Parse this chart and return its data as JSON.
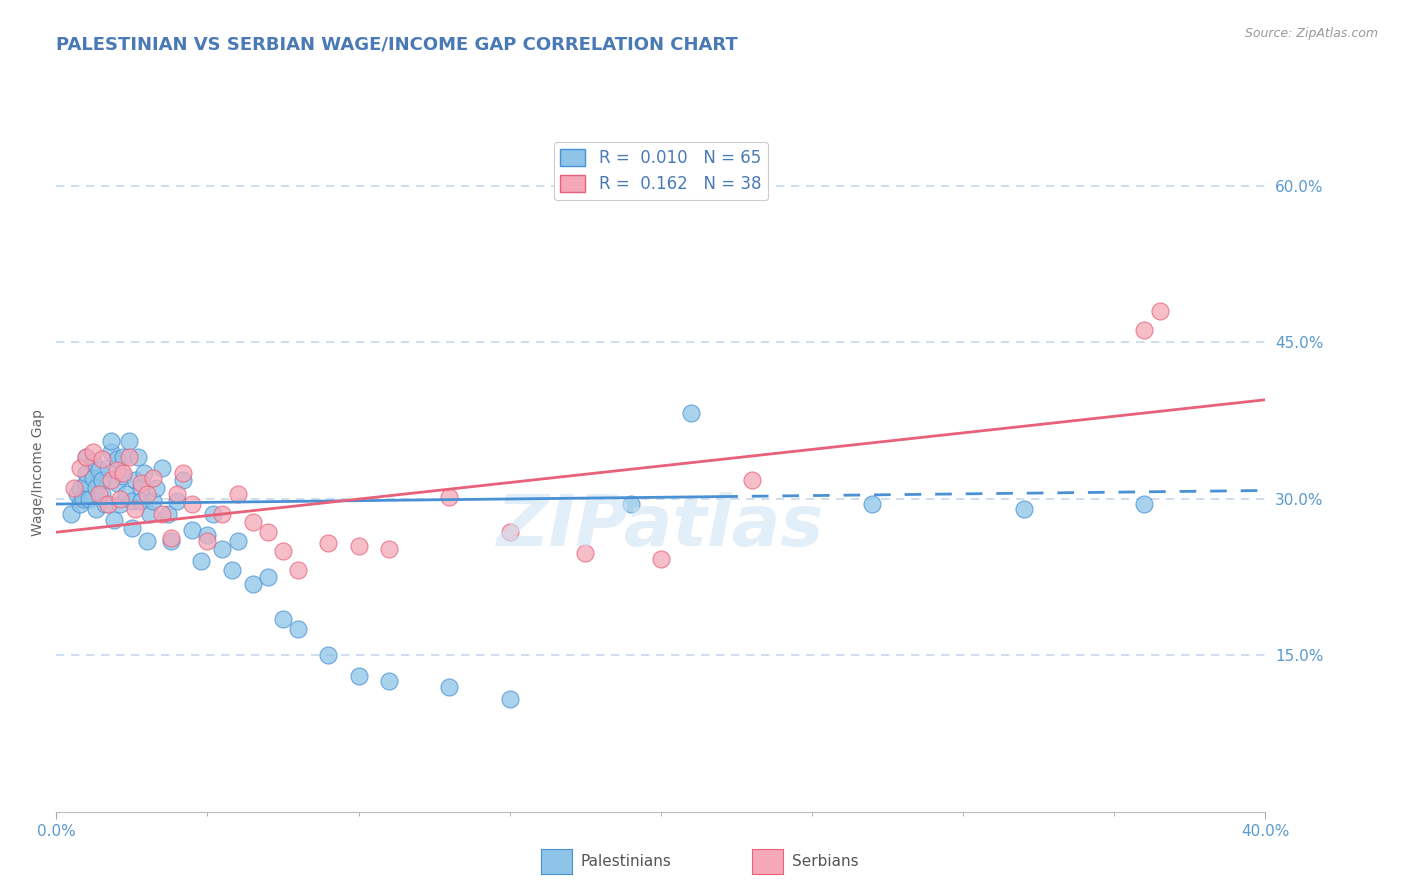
{
  "title": "PALESTINIAN VS SERBIAN WAGE/INCOME GAP CORRELATION CHART",
  "source": "Source: ZipAtlas.com",
  "xmin": 0.0,
  "xmax": 0.4,
  "ymin": 0.0,
  "ymax": 0.65,
  "palestinian_color": "#8dc4e8",
  "serbian_color": "#f4a8b8",
  "palestinian_line_color": "#4a90d4",
  "serbian_line_color": "#e8607a",
  "palestinian_R": 0.01,
  "palestinian_N": 65,
  "serbian_R": 0.162,
  "serbian_N": 38,
  "title_color": "#4a7ab5",
  "axis_label_color": "#5a9ad0",
  "watermark_color": "#d0e4f4",
  "background_color": "#ffffff",
  "grid_color": "#c8d8ee",
  "palestinians_x": [
    0.005,
    0.007,
    0.008,
    0.008,
    0.009,
    0.01,
    0.01,
    0.01,
    0.011,
    0.012,
    0.012,
    0.013,
    0.013,
    0.014,
    0.015,
    0.015,
    0.016,
    0.017,
    0.018,
    0.018,
    0.019,
    0.02,
    0.02,
    0.021,
    0.022,
    0.022,
    0.023,
    0.024,
    0.025,
    0.025,
    0.026,
    0.027,
    0.028,
    0.028,
    0.029,
    0.03,
    0.031,
    0.032,
    0.033,
    0.035,
    0.037,
    0.038,
    0.04,
    0.042,
    0.045,
    0.048,
    0.05,
    0.052,
    0.055,
    0.058,
    0.06,
    0.065,
    0.07,
    0.075,
    0.08,
    0.09,
    0.1,
    0.11,
    0.13,
    0.15,
    0.19,
    0.21,
    0.27,
    0.32,
    0.36
  ],
  "palestinians_y": [
    0.285,
    0.305,
    0.31,
    0.295,
    0.3,
    0.315,
    0.325,
    0.34,
    0.3,
    0.32,
    0.335,
    0.29,
    0.31,
    0.328,
    0.305,
    0.318,
    0.295,
    0.33,
    0.345,
    0.355,
    0.28,
    0.315,
    0.338,
    0.295,
    0.322,
    0.34,
    0.305,
    0.355,
    0.272,
    0.298,
    0.318,
    0.34,
    0.31,
    0.298,
    0.325,
    0.26,
    0.285,
    0.298,
    0.31,
    0.33,
    0.285,
    0.26,
    0.298,
    0.318,
    0.27,
    0.24,
    0.265,
    0.285,
    0.252,
    0.232,
    0.26,
    0.218,
    0.225,
    0.185,
    0.175,
    0.15,
    0.13,
    0.125,
    0.12,
    0.108,
    0.295,
    0.382,
    0.295,
    0.29,
    0.295
  ],
  "serbians_x": [
    0.006,
    0.008,
    0.01,
    0.012,
    0.014,
    0.015,
    0.017,
    0.018,
    0.02,
    0.021,
    0.022,
    0.024,
    0.026,
    0.028,
    0.03,
    0.032,
    0.035,
    0.038,
    0.04,
    0.042,
    0.045,
    0.05,
    0.055,
    0.06,
    0.065,
    0.07,
    0.075,
    0.08,
    0.09,
    0.1,
    0.11,
    0.13,
    0.15,
    0.175,
    0.2,
    0.23,
    0.36,
    0.365
  ],
  "serbians_y": [
    0.31,
    0.33,
    0.34,
    0.345,
    0.305,
    0.338,
    0.295,
    0.318,
    0.328,
    0.3,
    0.325,
    0.34,
    0.29,
    0.315,
    0.305,
    0.32,
    0.285,
    0.262,
    0.305,
    0.325,
    0.295,
    0.26,
    0.285,
    0.305,
    0.278,
    0.268,
    0.25,
    0.232,
    0.258,
    0.255,
    0.252,
    0.302,
    0.268,
    0.248,
    0.242,
    0.318,
    0.462,
    0.48
  ],
  "pal_trend_x": [
    0.0,
    0.4
  ],
  "pal_trend_y": [
    0.295,
    0.308
  ],
  "ser_trend_x": [
    0.0,
    0.4
  ],
  "ser_trend_y": [
    0.268,
    0.395
  ],
  "title_fontsize": 13,
  "axis_tick_fontsize": 11,
  "legend_fontsize": 12
}
